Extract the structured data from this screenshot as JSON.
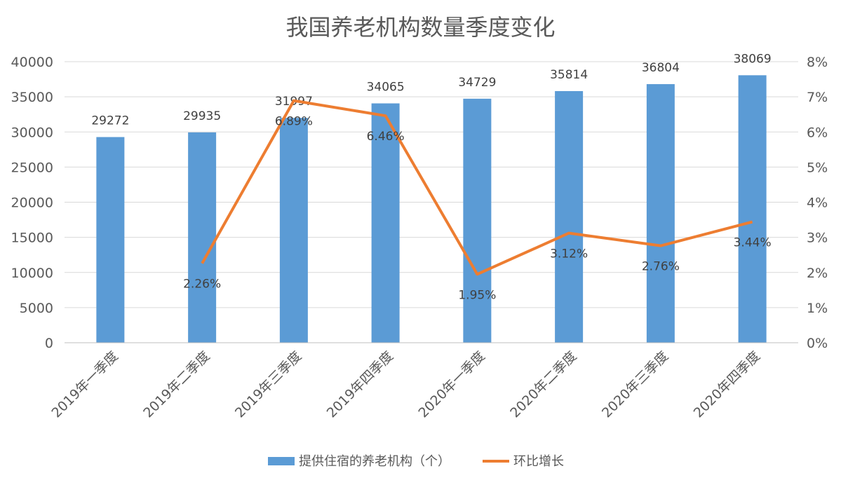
{
  "chart_data": {
    "type": "bar",
    "title": "我国养老机构数量季度变化",
    "categories": [
      "2019年一季度",
      "2019年二季度",
      "2019年三季度",
      "2019年四季度",
      "2020年一季度",
      "2020年二季度",
      "2020年三季度",
      "2020年四季度"
    ],
    "series": [
      {
        "name": "提供住宿的养老机构（个）",
        "type": "bar",
        "axis": "left",
        "color": "#5B9BD5",
        "values": [
          29272,
          29935,
          31997,
          34065,
          34729,
          35814,
          36804,
          38069
        ],
        "labels": [
          "29272",
          "29935",
          "31997",
          "34065",
          "34729",
          "35814",
          "36804",
          "38069"
        ]
      },
      {
        "name": "环比增长",
        "type": "line",
        "axis": "right",
        "color": "#ED7D31",
        "values": [
          null,
          2.26,
          6.89,
          6.46,
          1.95,
          3.12,
          2.76,
          3.44
        ],
        "labels": [
          "",
          "2.26%",
          "6.89%",
          "6.46%",
          "1.95%",
          "3.12%",
          "2.76%",
          "3.44%"
        ]
      }
    ],
    "y_left": {
      "min": 0,
      "max": 40000,
      "ticks": [
        "0",
        "5000",
        "10000",
        "15000",
        "20000",
        "25000",
        "30000",
        "35000",
        "40000"
      ]
    },
    "y_right": {
      "min": 0,
      "max": 8,
      "ticks": [
        "0%",
        "1%",
        "2%",
        "3%",
        "4%",
        "5%",
        "6%",
        "7%",
        "8%"
      ]
    },
    "grid": true,
    "legend": "bottom"
  }
}
